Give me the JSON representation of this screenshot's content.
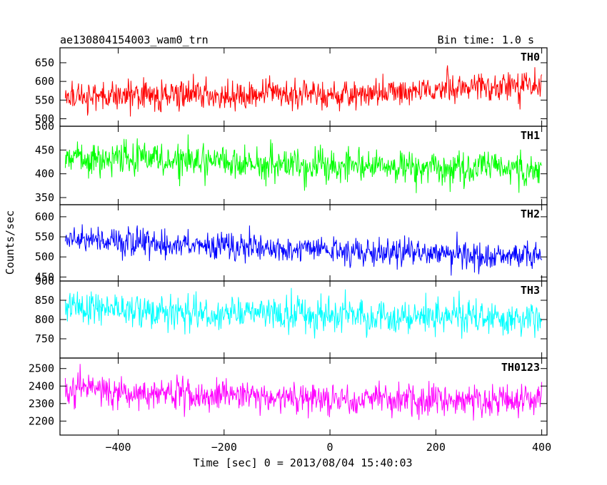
{
  "header": {
    "title_left": "ae130804154003_wam0_trn",
    "title_right": "Bin time: 1.0 s"
  },
  "chart_data": {
    "type": "line",
    "title": "ae130804154003_wam0_trn",
    "bin_time": "Bin time: 1.0 s",
    "xlabel": "Time [sec] 0 = 2013/08/04 15:40:03",
    "ylabel": "Counts/sec",
    "xlim": [
      -510,
      410
    ],
    "x_ticks": [
      -400,
      -200,
      0,
      200,
      400
    ],
    "x_tick_labels": [
      "−400",
      "−200",
      "0",
      "200",
      "400"
    ],
    "x_data_range": [
      -500,
      400
    ],
    "bin_seconds": 1.0,
    "grid": false,
    "series": [
      {
        "name": "TH0",
        "color": "#ff0000",
        "ylim": [
          480,
          690
        ],
        "yticks": [
          500,
          550,
          600,
          650
        ],
        "trend": [
          [
            -500,
            562
          ],
          [
            0,
            565
          ],
          [
            400,
            590
          ]
        ],
        "noise_sd": 25
      },
      {
        "name": "TH1",
        "color": "#00ff00",
        "ylim": [
          335,
          500
        ],
        "yticks": [
          350,
          400,
          450,
          500
        ],
        "trend": [
          [
            -500,
            435
          ],
          [
            0,
            418
          ],
          [
            400,
            410
          ]
        ],
        "noise_sd": 22
      },
      {
        "name": "TH2",
        "color": "#0000ff",
        "ylim": [
          440,
          630
        ],
        "yticks": [
          450,
          500,
          550,
          600
        ],
        "trend": [
          [
            -500,
            545
          ],
          [
            0,
            515
          ],
          [
            400,
            505
          ]
        ],
        "noise_sd": 22
      },
      {
        "name": "TH3",
        "color": "#00ffff",
        "ylim": [
          700,
          900
        ],
        "yticks": [
          750,
          800,
          850,
          900
        ],
        "trend": [
          [
            -500,
            830
          ],
          [
            0,
            810
          ],
          [
            400,
            805
          ]
        ],
        "noise_sd": 28
      },
      {
        "name": "TH0123",
        "color": "#ff00ff",
        "ylim": [
          2120,
          2560
        ],
        "yticks": [
          2200,
          2300,
          2400,
          2500
        ],
        "trend": [
          [
            -500,
            2380
          ],
          [
            0,
            2320
          ],
          [
            400,
            2320
          ]
        ],
        "noise_sd": 55
      }
    ]
  }
}
